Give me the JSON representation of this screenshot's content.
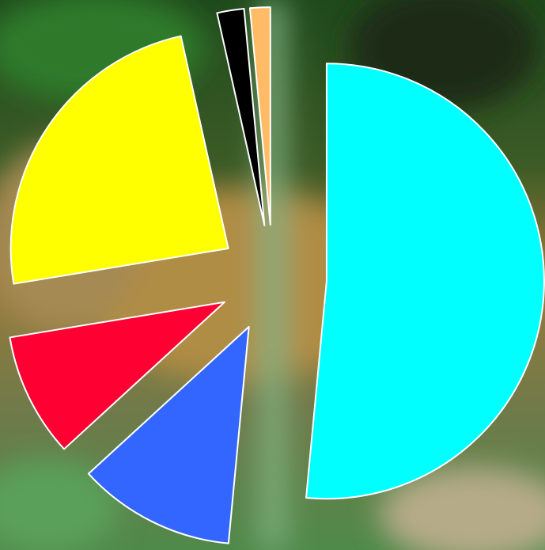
{
  "chart_data": {
    "type": "pie",
    "values": [
      51.5,
      11.7,
      9.2,
      24.1,
      2,
      1.5
    ],
    "colors": [
      "#00ffff",
      "#3366ff",
      "#ff0033",
      "#ffff00",
      "#000000",
      "#ffbb66"
    ]
  }
}
